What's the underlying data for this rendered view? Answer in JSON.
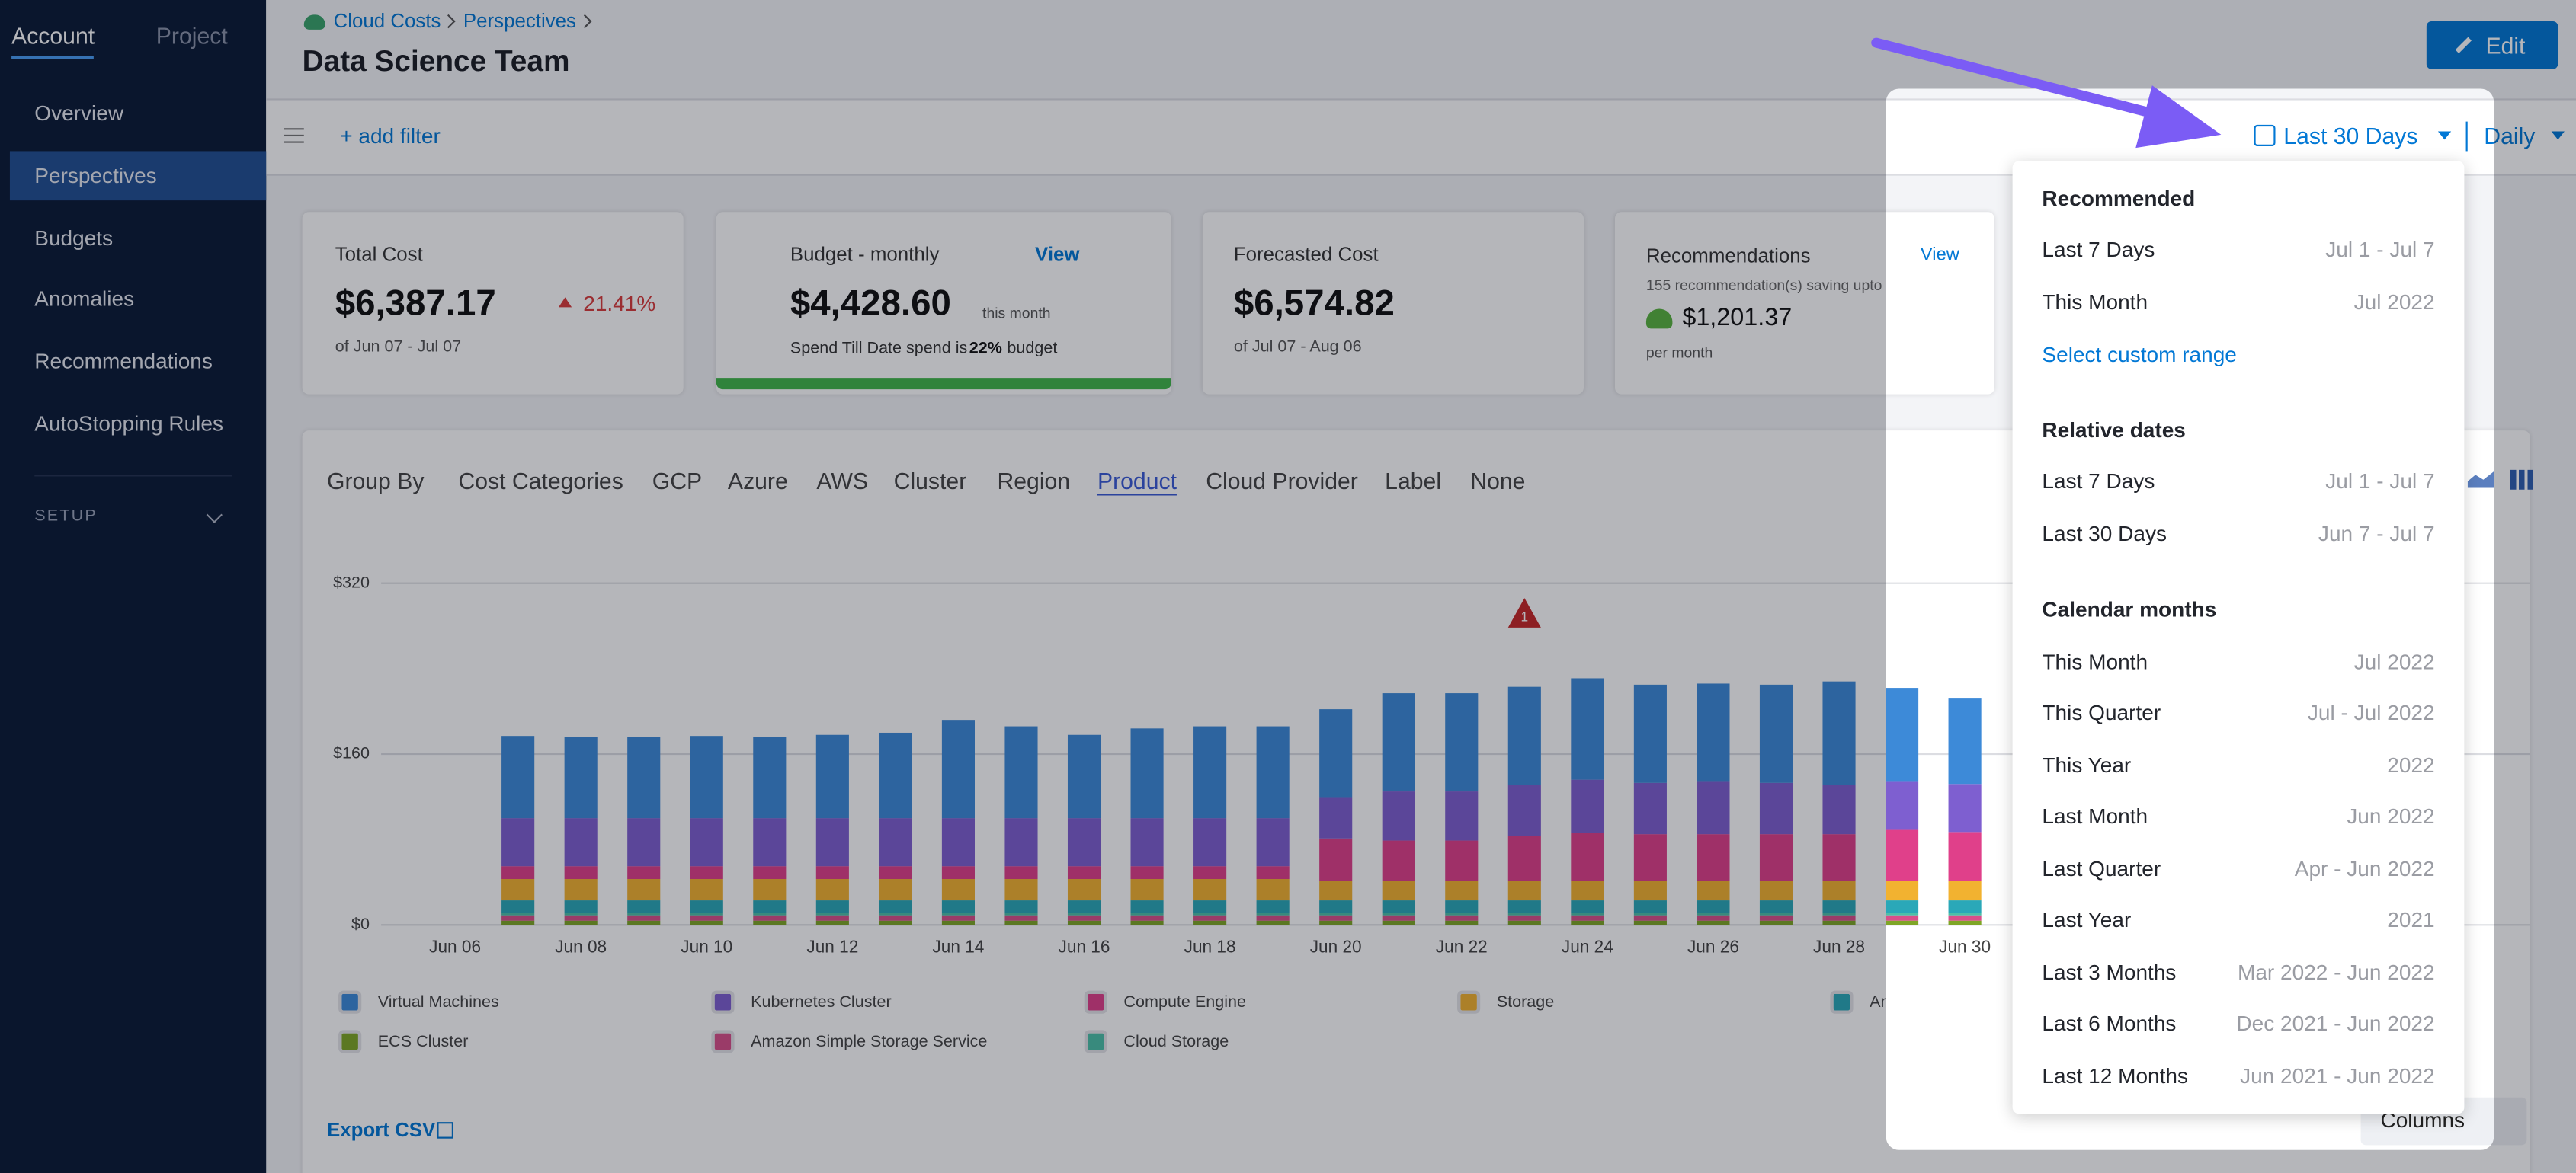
{
  "sidebar": {
    "tabs": [
      "Account",
      "Project"
    ],
    "items": [
      "Overview",
      "Perspectives",
      "Budgets",
      "Anomalies",
      "Recommendations",
      "AutoStopping Rules"
    ],
    "setup": "SETUP"
  },
  "header": {
    "breadcrumbs": [
      "Cloud Costs",
      "Perspectives"
    ],
    "title": "Data Science Team",
    "edit": "Edit"
  },
  "toolbar": {
    "add_filter": "+ add filter",
    "date_range": "Last 30 Days",
    "granularity": "Daily"
  },
  "cards": {
    "total": {
      "title": "Total Cost",
      "value": "$6,387.17",
      "change": "21.41%",
      "sub": "of Jun 07 - Jul 07"
    },
    "budget": {
      "title": "Budget - monthly",
      "link": "View",
      "value": "$4,428.60",
      "suffix": "this month",
      "sub": "Spend Till Date spend is",
      "percent": "22%",
      "tail": "budget"
    },
    "forecast": {
      "title": "Forecasted Cost",
      "value": "$6,574.82",
      "sub": "of Jul 07 - Aug 06"
    },
    "recommendations": {
      "title": "Recommendations",
      "link": "View",
      "sub": "155 recommendation(s) saving upto",
      "value": "$1,201.37",
      "tail": "per month"
    }
  },
  "group_by": {
    "label": "Group By",
    "options": [
      "Cost Categories",
      "GCP",
      "Azure",
      "AWS",
      "Cluster",
      "Region",
      "Product",
      "Cloud Provider",
      "Label",
      "None"
    ],
    "active_index": 6
  },
  "chart_data": {
    "type": "stacked_bar",
    "categories": [
      "Jun 06",
      null,
      "Jun 08",
      null,
      "Jun 10",
      null,
      "Jun 12",
      null,
      "Jun 14",
      null,
      "Jun 16",
      null,
      "Jun 18",
      null,
      "Jun 20",
      null,
      "Jun 22",
      null,
      "Jun 24",
      null,
      "Jun 26",
      null,
      "Jun 28",
      null,
      "Jun 30"
    ],
    "ylim": [
      0,
      320
    ],
    "yticks": [
      {
        "value": 0,
        "label": "$0"
      },
      {
        "value": 160,
        "label": "$160"
      },
      {
        "value": 320,
        "label": "$320"
      }
    ],
    "grid": true,
    "annotation": "1",
    "series": [
      {
        "name": "ECS Cluster",
        "color": "#7fa626",
        "values": [
          null,
          4,
          4,
          4,
          4,
          4,
          4,
          4,
          4,
          4,
          4,
          4,
          4,
          4,
          4,
          4,
          4,
          4,
          4,
          4,
          4,
          4,
          4,
          4,
          4
        ]
      },
      {
        "name": "Amazon Simple Storage Service",
        "color": "#d94f8a",
        "values": [
          null,
          5,
          5,
          5,
          5,
          5,
          5,
          5,
          5,
          5,
          5,
          5,
          5,
          5,
          5,
          5,
          5,
          5,
          5,
          5,
          5,
          5,
          5,
          5,
          5
        ]
      },
      {
        "name": "Cloud Storage",
        "color": "#4cc0a8",
        "values": [
          null,
          2,
          2,
          2,
          2,
          2,
          2,
          2,
          2,
          2,
          2,
          2,
          2,
          2,
          2,
          2,
          2,
          2,
          2,
          2,
          2,
          2,
          2,
          2,
          2
        ]
      },
      {
        "name": "Amazon Elastic Container Service",
        "color": "#2aa8b8",
        "values": [
          null,
          12,
          12,
          12,
          12,
          12,
          12,
          12,
          12,
          12,
          12,
          12,
          12,
          12,
          12,
          12,
          12,
          12,
          12,
          12,
          12,
          12,
          12,
          12,
          12
        ]
      },
      {
        "name": "Storage",
        "color": "#f2b230",
        "values": [
          null,
          20,
          20,
          20,
          20,
          20,
          20,
          20,
          20,
          20,
          20,
          20,
          20,
          20,
          18,
          18,
          18,
          18,
          18,
          18,
          18,
          18,
          18,
          18,
          18
        ]
      },
      {
        "name": "Compute Engine",
        "color": "#e0408a",
        "values": [
          null,
          12,
          12,
          12,
          12,
          12,
          12,
          12,
          12,
          12,
          12,
          12,
          12,
          12,
          40,
          38,
          38,
          42,
          45,
          44,
          44,
          44,
          44,
          48,
          46
        ]
      },
      {
        "name": "Kubernetes Cluster",
        "color": "#7e5fd0",
        "values": [
          null,
          45,
          45,
          45,
          45,
          45,
          45,
          45,
          45,
          45,
          45,
          45,
          45,
          45,
          38,
          46,
          46,
          48,
          50,
          48,
          49,
          48,
          46,
          45,
          45
        ]
      },
      {
        "name": "Virtual Machines",
        "color": "#3d8ad8",
        "values": [
          null,
          77,
          76,
          76,
          77,
          76,
          78,
          80,
          92,
          86,
          78,
          84,
          86,
          86,
          83,
          92,
          92,
          92,
          95,
          92,
          92,
          92,
          97,
          88,
          80
        ]
      }
    ]
  },
  "footer": {
    "export": "Export CSV",
    "columns": "Columns"
  },
  "dropdown": {
    "sections": [
      {
        "heading": "Recommended",
        "items": [
          {
            "label": "Last 7 Days",
            "range": "Jul 1 - Jul 7"
          },
          {
            "label": "This Month",
            "range": "Jul 2022"
          }
        ],
        "link": "Select custom range"
      },
      {
        "heading": "Relative dates",
        "items": [
          {
            "label": "Last 7 Days",
            "range": "Jul 1 - Jul 7"
          },
          {
            "label": "Last 30 Days",
            "range": "Jun 7 - Jul 7"
          }
        ]
      },
      {
        "heading": "Calendar months",
        "items": [
          {
            "label": "This Month",
            "range": "Jul 2022"
          },
          {
            "label": "This Quarter",
            "range": "Jul - Jul 2022"
          },
          {
            "label": "This Year",
            "range": "2022"
          },
          {
            "label": "Last Month",
            "range": "Jun 2022"
          },
          {
            "label": "Last Quarter",
            "range": "Apr - Jun 2022"
          },
          {
            "label": "Last Year",
            "range": "2021"
          },
          {
            "label": "Last 3 Months",
            "range": "Mar 2022 - Jun 2022"
          },
          {
            "label": "Last 6 Months",
            "range": "Dec 2021 - Jun 2022"
          },
          {
            "label": "Last 12 Months",
            "range": "Jun 2021 - Jun 2022"
          }
        ]
      }
    ]
  }
}
